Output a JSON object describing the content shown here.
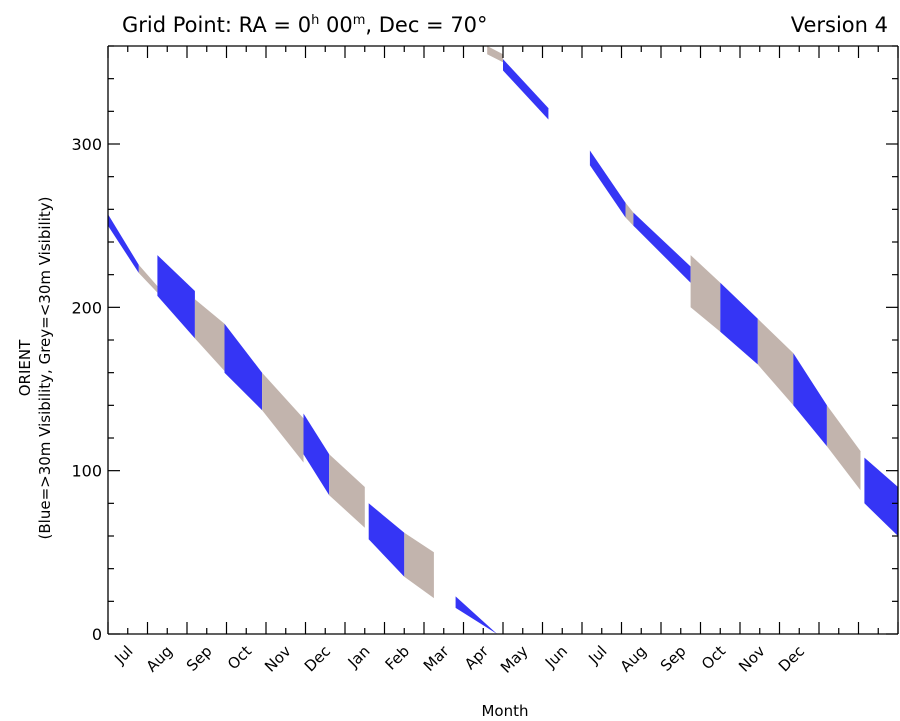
{
  "chart_data": {
    "type": "band-timeline",
    "title_left": "Grid Point: RA = 0",
    "title_h": "h",
    "title_mid": " 00",
    "title_m": "m",
    "title_right": ", Dec = 70°",
    "version": "Version 4",
    "ylabel_line1": "ORIENT",
    "ylabel_line2": "(Blue=>30m Visibility, Grey=<30m Visibility)",
    "xlabel": "Month",
    "xlim": [
      0,
      20
    ],
    "ylim": [
      0,
      360
    ],
    "yticks": [
      0,
      100,
      200,
      300
    ],
    "ytick_labels": [
      "0",
      "100",
      "200",
      "300"
    ],
    "month_labels": [
      "Jul",
      "Aug",
      "Sep",
      "Oct",
      "Nov",
      "Dec",
      "Jan",
      "Feb",
      "Mar",
      "Apr",
      "May",
      "Jun",
      "Jul",
      "Aug",
      "Sep",
      "Oct",
      "Nov",
      "Dec"
    ],
    "colors": {
      "blue": "#3535f5",
      "grey": "#c2b4ad"
    },
    "legend": [
      {
        "label": "Blue=>30m Visibility",
        "color": "#3535f5"
      },
      {
        "label": "Grey=<30m Visibility",
        "color": "#c2b4ad"
      }
    ],
    "segments": [
      {
        "kind": "blue",
        "x": [
          0.0,
          0.78
        ],
        "top": [
          257,
          226
        ],
        "bottom": [
          250,
          221
        ]
      },
      {
        "kind": "grey",
        "x": [
          0.78,
          1.25
        ],
        "top": [
          226,
          213
        ],
        "bottom": [
          221,
          209
        ]
      },
      {
        "kind": "blue",
        "x": [
          1.25,
          2.2
        ],
        "top": [
          232,
          210
        ],
        "bottom": [
          207,
          181
        ]
      },
      {
        "kind": "grey",
        "x": [
          2.2,
          2.95
        ],
        "top": [
          205,
          190
        ],
        "bottom": [
          181,
          161
        ]
      },
      {
        "kind": "blue",
        "x": [
          2.95,
          3.9
        ],
        "top": [
          190,
          160
        ],
        "bottom": [
          160,
          137
        ]
      },
      {
        "kind": "grey",
        "x": [
          3.9,
          4.95
        ],
        "top": [
          160,
          132
        ],
        "bottom": [
          137,
          105
        ]
      },
      {
        "kind": "blue",
        "x": [
          4.95,
          5.6
        ],
        "top": [
          135,
          110
        ],
        "bottom": [
          110,
          85
        ]
      },
      {
        "kind": "grey",
        "x": [
          5.6,
          6.5
        ],
        "top": [
          110,
          90
        ],
        "bottom": [
          85,
          65
        ]
      },
      {
        "kind": "blue",
        "x": [
          6.6,
          7.5
        ],
        "top": [
          80,
          62
        ],
        "bottom": [
          58,
          35
        ]
      },
      {
        "kind": "grey",
        "x": [
          7.5,
          8.25
        ],
        "top": [
          62,
          50
        ],
        "bottom": [
          35,
          22
        ]
      },
      {
        "kind": "blue",
        "x": [
          8.8,
          9.85
        ],
        "top": [
          23,
          0
        ],
        "bottom": [
          16,
          0
        ]
      },
      {
        "kind": "grey",
        "x": [
          9.6,
          10.0
        ],
        "top": [
          360,
          355
        ],
        "bottom": [
          355,
          350
        ]
      },
      {
        "kind": "blue",
        "x": [
          10.0,
          11.15
        ],
        "top": [
          352,
          322
        ],
        "bottom": [
          345,
          315
        ]
      },
      {
        "kind": "blue",
        "x": [
          12.2,
          13.1
        ],
        "top": [
          296,
          264
        ],
        "bottom": [
          287,
          255
        ]
      },
      {
        "kind": "grey",
        "x": [
          13.1,
          13.3
        ],
        "top": [
          264,
          258
        ],
        "bottom": [
          255,
          250
        ]
      },
      {
        "kind": "blue",
        "x": [
          13.3,
          14.75
        ],
        "top": [
          258,
          225
        ],
        "bottom": [
          250,
          215
        ]
      },
      {
        "kind": "grey",
        "x": [
          14.75,
          15.5
        ],
        "top": [
          232,
          215
        ],
        "bottom": [
          200,
          185
        ]
      },
      {
        "kind": "blue",
        "x": [
          15.5,
          16.45
        ],
        "top": [
          215,
          193
        ],
        "bottom": [
          185,
          165
        ]
      },
      {
        "kind": "grey",
        "x": [
          16.45,
          17.35
        ],
        "top": [
          193,
          172
        ],
        "bottom": [
          165,
          140
        ]
      },
      {
        "kind": "blue",
        "x": [
          17.35,
          18.2
        ],
        "top": [
          172,
          140
        ],
        "bottom": [
          140,
          115
        ]
      },
      {
        "kind": "grey",
        "x": [
          18.2,
          19.05
        ],
        "top": [
          140,
          112
        ],
        "bottom": [
          115,
          88
        ]
      },
      {
        "kind": "blue",
        "x": [
          19.15,
          20.0
        ],
        "top": [
          108,
          90
        ],
        "bottom": [
          80,
          60
        ]
      }
    ]
  }
}
